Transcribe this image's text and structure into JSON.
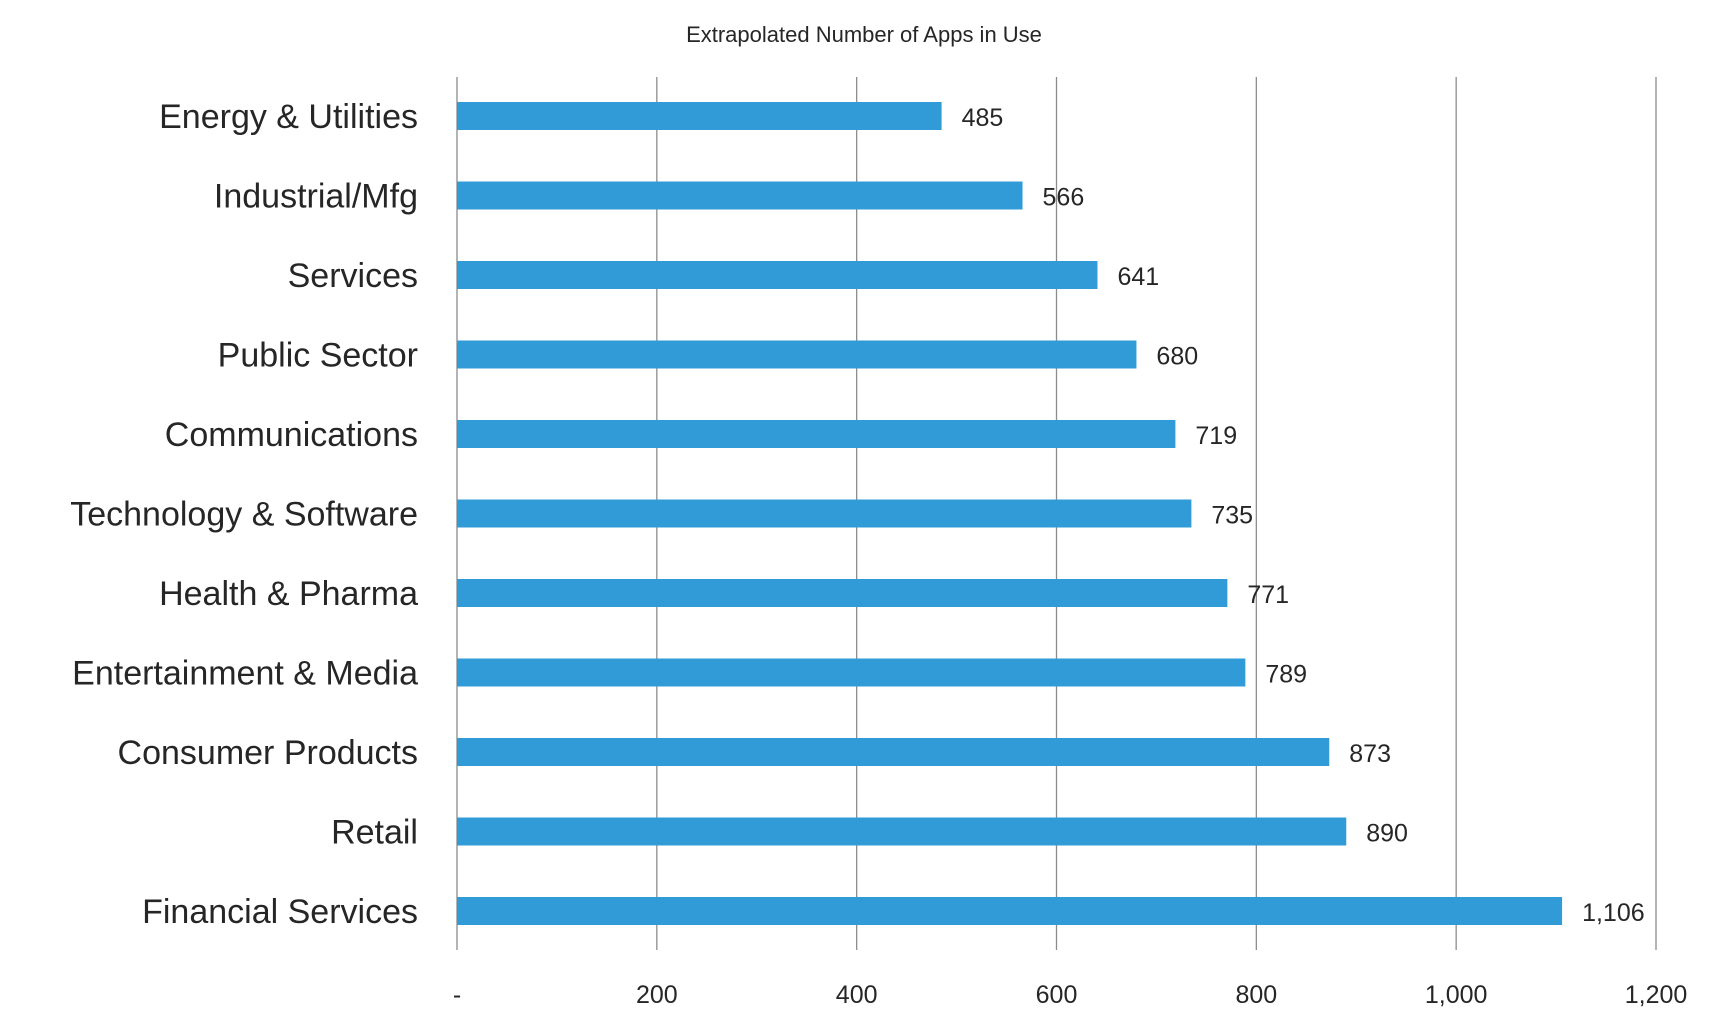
{
  "chart_data": {
    "type": "bar",
    "orientation": "horizontal",
    "title": "Extrapolated Number of Apps in Use",
    "xlabel": "",
    "ylabel": "",
    "categories": [
      "Energy & Utilities",
      "Industrial/Mfg",
      "Services",
      "Public Sector",
      "Communications",
      "Technology & Software",
      "Health & Pharma",
      "Entertainment & Media",
      "Consumer Products",
      "Retail",
      "Financial Services"
    ],
    "values": [
      485,
      566,
      641,
      680,
      719,
      735,
      771,
      789,
      873,
      890,
      1106
    ],
    "data_labels": [
      "485",
      "566",
      "641",
      "680",
      "719",
      "735",
      "771",
      "789",
      "873",
      "890",
      "1,106"
    ],
    "xlim": [
      0,
      1200
    ],
    "ticks": [
      0,
      200,
      400,
      600,
      800,
      1000,
      1200
    ],
    "tick_labels": [
      "-",
      "200",
      "400",
      "600",
      "800",
      "1,000",
      "1,200"
    ],
    "grid": "vertical",
    "legend": "none",
    "bar_color": "#319BD8",
    "grid_color": "#8C8C8C"
  }
}
